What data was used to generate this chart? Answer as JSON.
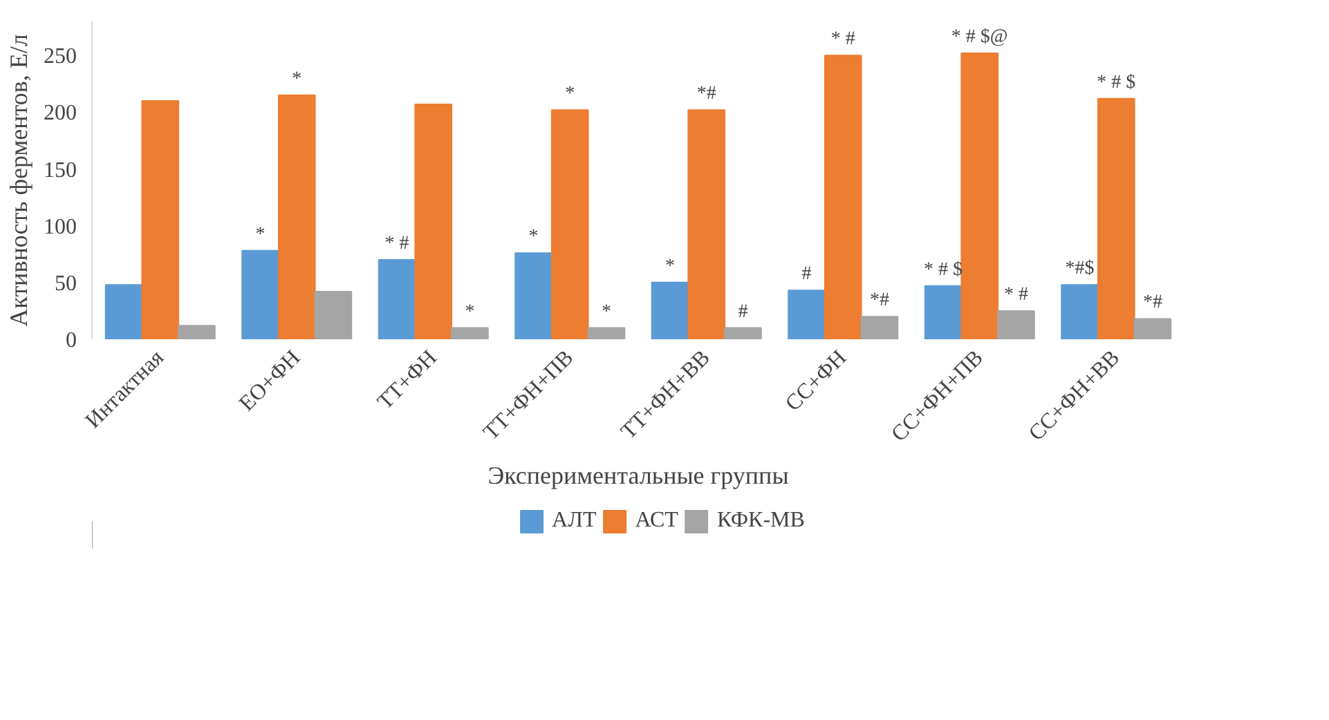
{
  "chart_data": {
    "type": "bar",
    "xlabel": "Экспериментальные группы",
    "ylabel": "Активность ферментов, Е/л",
    "categories": [
      "Интактная",
      "ЕО+ФН",
      "ТТ+ФН",
      "ТТ+ФН+ПВ",
      "ТТ+ФН+ВВ",
      "СС+ФН",
      "СС+ФН+ПВ",
      "СС+ФН+ВВ"
    ],
    "series": [
      {
        "name": "АЛТ",
        "color": "#5b9bd5",
        "values": [
          48,
          78,
          70,
          76,
          50,
          43,
          47,
          48
        ],
        "value_labels": [
          null,
          "*",
          "* #",
          "*",
          "*",
          "#",
          "* # $",
          "*#$"
        ]
      },
      {
        "name": "АСТ",
        "color": "#ed7d31",
        "values": [
          210,
          215,
          207,
          202,
          202,
          250,
          252,
          212
        ],
        "value_labels": [
          null,
          "*",
          null,
          "*",
          "*#",
          "* #",
          "* # $@",
          "* # $"
        ]
      },
      {
        "name": "КФК-МВ",
        "color": "#a5a5a5",
        "values": [
          12,
          42,
          10,
          10,
          10,
          20,
          25,
          18
        ],
        "value_labels": [
          null,
          null,
          "*",
          "*",
          "#",
          "*#",
          "* #",
          "*#"
        ]
      }
    ],
    "ylim": [
      0,
      280
    ],
    "yticks": [
      0,
      50,
      100,
      150,
      200,
      250
    ],
    "grid": false,
    "legend": "bottom"
  }
}
